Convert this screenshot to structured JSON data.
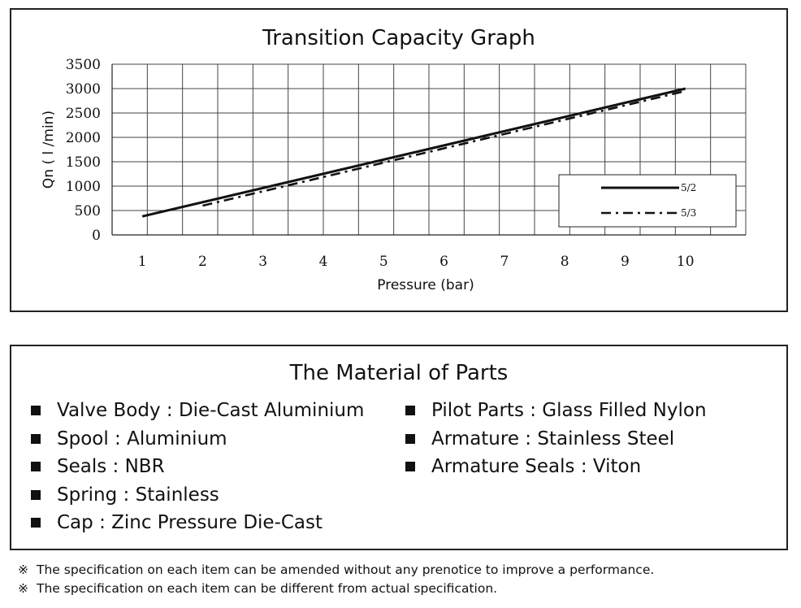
{
  "chart_data": {
    "type": "line",
    "title": "Transition Capacity Graph",
    "xlabel": "Pressure (bar)",
    "ylabel": "Qn ( l /min)",
    "x": [
      1,
      2,
      3,
      4,
      5,
      6,
      7,
      8,
      9,
      10
    ],
    "xlim": [
      1,
      10
    ],
    "ylim": [
      0,
      3500
    ],
    "x_ticks": [
      "1",
      "2",
      "3",
      "4",
      "5",
      "6",
      "7",
      "8",
      "9",
      "10"
    ],
    "y_ticks": [
      "0",
      "500",
      "1000",
      "1500",
      "2000",
      "2500",
      "3000",
      "3500"
    ],
    "grid": true,
    "legend_position": "bottom-right",
    "series": [
      {
        "name": "5/2",
        "style": "solid",
        "x": [
          1,
          10
        ],
        "values": [
          380,
          3000
        ]
      },
      {
        "name": "5/3",
        "style": "dashed",
        "x": [
          2,
          10
        ],
        "values": [
          600,
          2950
        ]
      }
    ]
  },
  "materials": {
    "title": "The Material of Parts",
    "left": [
      "Valve Body : Die-Cast Aluminium",
      "Spool : Aluminium",
      "Seals : NBR",
      "Spring : Stainless",
      "Cap : Zinc Pressure Die-Cast"
    ],
    "right": [
      "Pilot Parts : Glass Filled Nylon",
      "Armature : Stainless Steel",
      "Armature Seals : Viton"
    ]
  },
  "notes": {
    "mark": "※",
    "items": [
      "The specification on each item can be amended without any prenotice to improve a performance.",
      "The specification on each item can be different from actual specification."
    ]
  }
}
